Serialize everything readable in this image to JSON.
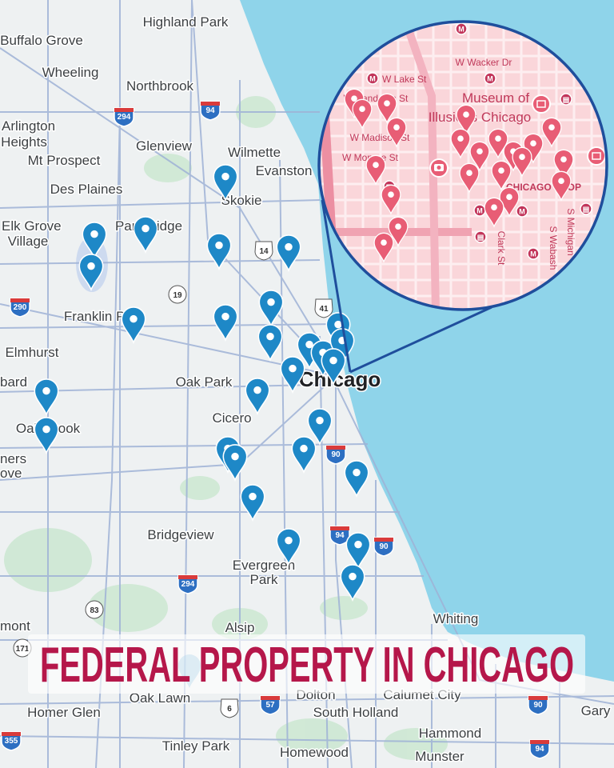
{
  "title": "FEDERAL PROPERTY IN CHICAGO",
  "colors": {
    "title": "#b5174a",
    "lake": "#8fd4ea",
    "land": "#eef1f2",
    "pin_main": "#1e88c7",
    "pin_inset": "#e85d75",
    "inset_bg": "#fad6da",
    "inset_border": "#1f4e9c"
  },
  "main_map": {
    "city_labels": [
      "Highland Park",
      "Buffalo Grove",
      "Wheeling",
      "Northbrook",
      "Arlington",
      "Heights",
      "Glenview",
      "Mt Prospect",
      "Wilmette",
      "Evanston",
      "Des Plaines",
      "Skokie",
      "Elk Grove",
      "Village",
      "Park Ridge",
      "Franklin Park",
      "Elmhurst",
      "Oak Park",
      "Cicero",
      "Oak Brook",
      "bard",
      "Bridgeview",
      "Evergreen",
      "Park",
      "Whiting",
      "Alsip",
      "mont",
      "Calumet City",
      "Homer Glen",
      "South Holland",
      "Gary",
      "Hammond",
      "Tinley Park",
      "Homewood",
      "Munster",
      "ners",
      "ove",
      "Oak Lawn",
      "Dolton"
    ],
    "main_city": "Chicago",
    "highway_shields": [
      "294",
      "94",
      "14",
      "19",
      "290",
      "41",
      "90",
      "94",
      "90",
      "294",
      "83",
      "171",
      "6",
      "57",
      "90",
      "94",
      "355"
    ],
    "pin_icon": "map-marker-icon"
  },
  "inset_map": {
    "street_labels": [
      "W Wacker Dr",
      "W Lake St",
      "W Randolph St",
      "W Madison St",
      "W Monroe St",
      "Clark St",
      "S Wabash",
      "S Michigan"
    ],
    "poi_labels": [
      "Museum of",
      "Illusions Chicago",
      "CHICAGO LOOP"
    ],
    "icons": [
      "metro-icon",
      "train-icon",
      "museum-icon",
      "camera-icon"
    ],
    "pin_icon": "map-marker-icon"
  }
}
